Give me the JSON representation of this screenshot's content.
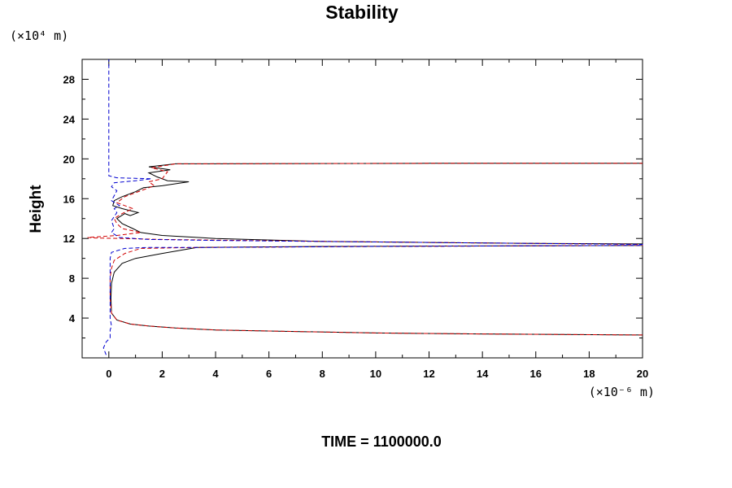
{
  "chart_data": {
    "type": "line",
    "title": "Stability",
    "ylabel": "Height",
    "xlabel": "",
    "y_units": "(×10⁴ m)",
    "x_units": "(×10⁻⁶ m)",
    "xlim": [
      -1,
      20
    ],
    "ylim": [
      0,
      30
    ],
    "x_ticks": [
      0,
      2,
      4,
      6,
      8,
      10,
      12,
      14,
      16,
      18,
      20
    ],
    "y_ticks": [
      4,
      8,
      12,
      16,
      20,
      24,
      28
    ],
    "grid": false,
    "series": [
      {
        "color": "#000000",
        "style": "solid",
        "points": [
          [
            20,
            2.3
          ],
          [
            14,
            2.4
          ],
          [
            10,
            2.5
          ],
          [
            6,
            2.7
          ],
          [
            4,
            2.8
          ],
          [
            2.5,
            3.0
          ],
          [
            1.5,
            3.2
          ],
          [
            0.8,
            3.4
          ],
          [
            0.3,
            3.8
          ],
          [
            0.1,
            4.5
          ],
          [
            0.08,
            6
          ],
          [
            0.1,
            7.5
          ],
          [
            0.2,
            8.6
          ],
          [
            0.5,
            9.5
          ],
          [
            1,
            10
          ],
          [
            2,
            10.5
          ],
          [
            3.3,
            11.1
          ],
          [
            8,
            11.2
          ],
          [
            14,
            11.25
          ],
          [
            20,
            11.3
          ],
          [
            20,
            11.45
          ],
          [
            16,
            11.5
          ],
          [
            12,
            11.6
          ],
          [
            8,
            11.7
          ],
          [
            4,
            12.0
          ],
          [
            2,
            12.3
          ],
          [
            1.2,
            12.6
          ],
          [
            0.9,
            13.0
          ],
          [
            0.5,
            13.5
          ],
          [
            0.3,
            14.0
          ],
          [
            0.6,
            14.5
          ],
          [
            0.8,
            14.3
          ],
          [
            1.1,
            14.6
          ],
          [
            0.5,
            15.0
          ],
          [
            0.15,
            15.3
          ],
          [
            0.2,
            15.8
          ],
          [
            0.5,
            16.2
          ],
          [
            1.0,
            16.7
          ],
          [
            1.3,
            17.1
          ],
          [
            2.0,
            17.3
          ],
          [
            3.0,
            17.7
          ],
          [
            2.2,
            17.8
          ],
          [
            1.8,
            18.2
          ],
          [
            1.5,
            18.6
          ],
          [
            2.3,
            18.9
          ],
          [
            1.5,
            19.2
          ],
          [
            2.5,
            19.5
          ],
          [
            12,
            19.55
          ],
          [
            20,
            19.55
          ]
        ]
      },
      {
        "color": "#d00000",
        "style": "dashed",
        "points": [
          [
            20,
            2.3
          ],
          [
            14,
            2.4
          ],
          [
            10,
            2.5
          ],
          [
            6,
            2.7
          ],
          [
            4,
            2.8
          ],
          [
            2.5,
            3.0
          ],
          [
            1.5,
            3.2
          ],
          [
            0.8,
            3.4
          ],
          [
            0.3,
            3.8
          ],
          [
            0.1,
            4.5
          ],
          [
            0.05,
            6
          ],
          [
            0.05,
            8
          ],
          [
            0.1,
            9
          ],
          [
            0.2,
            9.8
          ],
          [
            0.6,
            10.5
          ],
          [
            1.2,
            11.0
          ],
          [
            3.5,
            11.1
          ],
          [
            10,
            11.2
          ],
          [
            20,
            11.3
          ],
          [
            20,
            11.4
          ],
          [
            12,
            11.6
          ],
          [
            5,
            11.8
          ],
          [
            2,
            11.9
          ],
          [
            0.5,
            12.0
          ],
          [
            -0.5,
            12.05
          ],
          [
            -0.8,
            12.1
          ],
          [
            0.3,
            12.3
          ],
          [
            1.2,
            12.6
          ],
          [
            0.5,
            13.0
          ],
          [
            0.3,
            13.5
          ],
          [
            0.2,
            14.0
          ],
          [
            0.5,
            14.5
          ],
          [
            0.9,
            15.0
          ],
          [
            0.3,
            15.6
          ],
          [
            0.6,
            16.2
          ],
          [
            1.2,
            16.8
          ],
          [
            1.7,
            17.3
          ],
          [
            1.5,
            17.7
          ],
          [
            2.0,
            18.0
          ],
          [
            2.2,
            18.7
          ],
          [
            1.6,
            19.1
          ],
          [
            2.5,
            19.5
          ],
          [
            12,
            19.55
          ],
          [
            20,
            19.55
          ]
        ]
      },
      {
        "color": "#0000d0",
        "style": "dashed",
        "points": [
          [
            -0.1,
            0.3
          ],
          [
            -0.2,
            1.0
          ],
          [
            -0.1,
            1.6
          ],
          [
            0.05,
            2.0
          ],
          [
            0.05,
            2.8
          ],
          [
            0.1,
            3.2
          ],
          [
            0.05,
            4
          ],
          [
            0.05,
            6
          ],
          [
            0.05,
            8
          ],
          [
            0.05,
            10
          ],
          [
            0.1,
            10.6
          ],
          [
            0.6,
            11.0
          ],
          [
            1.5,
            11.1
          ],
          [
            4,
            11.1
          ],
          [
            10,
            11.2
          ],
          [
            20,
            11.3
          ],
          [
            20,
            11.4
          ],
          [
            14,
            11.55
          ],
          [
            8,
            11.7
          ],
          [
            4,
            11.8
          ],
          [
            1.5,
            11.9
          ],
          [
            0.4,
            12.1
          ],
          [
            0.1,
            12.6
          ],
          [
            0.2,
            13.0
          ],
          [
            0.1,
            13.8
          ],
          [
            0.3,
            14.6
          ],
          [
            0.2,
            15.0
          ],
          [
            0.4,
            15.3
          ],
          [
            0.1,
            15.8
          ],
          [
            0.2,
            16.3
          ],
          [
            0.3,
            16.8
          ],
          [
            0.1,
            17.2
          ],
          [
            0.2,
            17.6
          ],
          [
            1.0,
            17.8
          ],
          [
            1.6,
            18.0
          ],
          [
            0.3,
            18.1
          ],
          [
            0.0,
            18.3
          ],
          [
            0.0,
            22
          ],
          [
            0.0,
            26
          ],
          [
            0.0,
            30
          ]
        ]
      }
    ]
  },
  "footer": {
    "time_label": "TIME = 1100000.0"
  }
}
